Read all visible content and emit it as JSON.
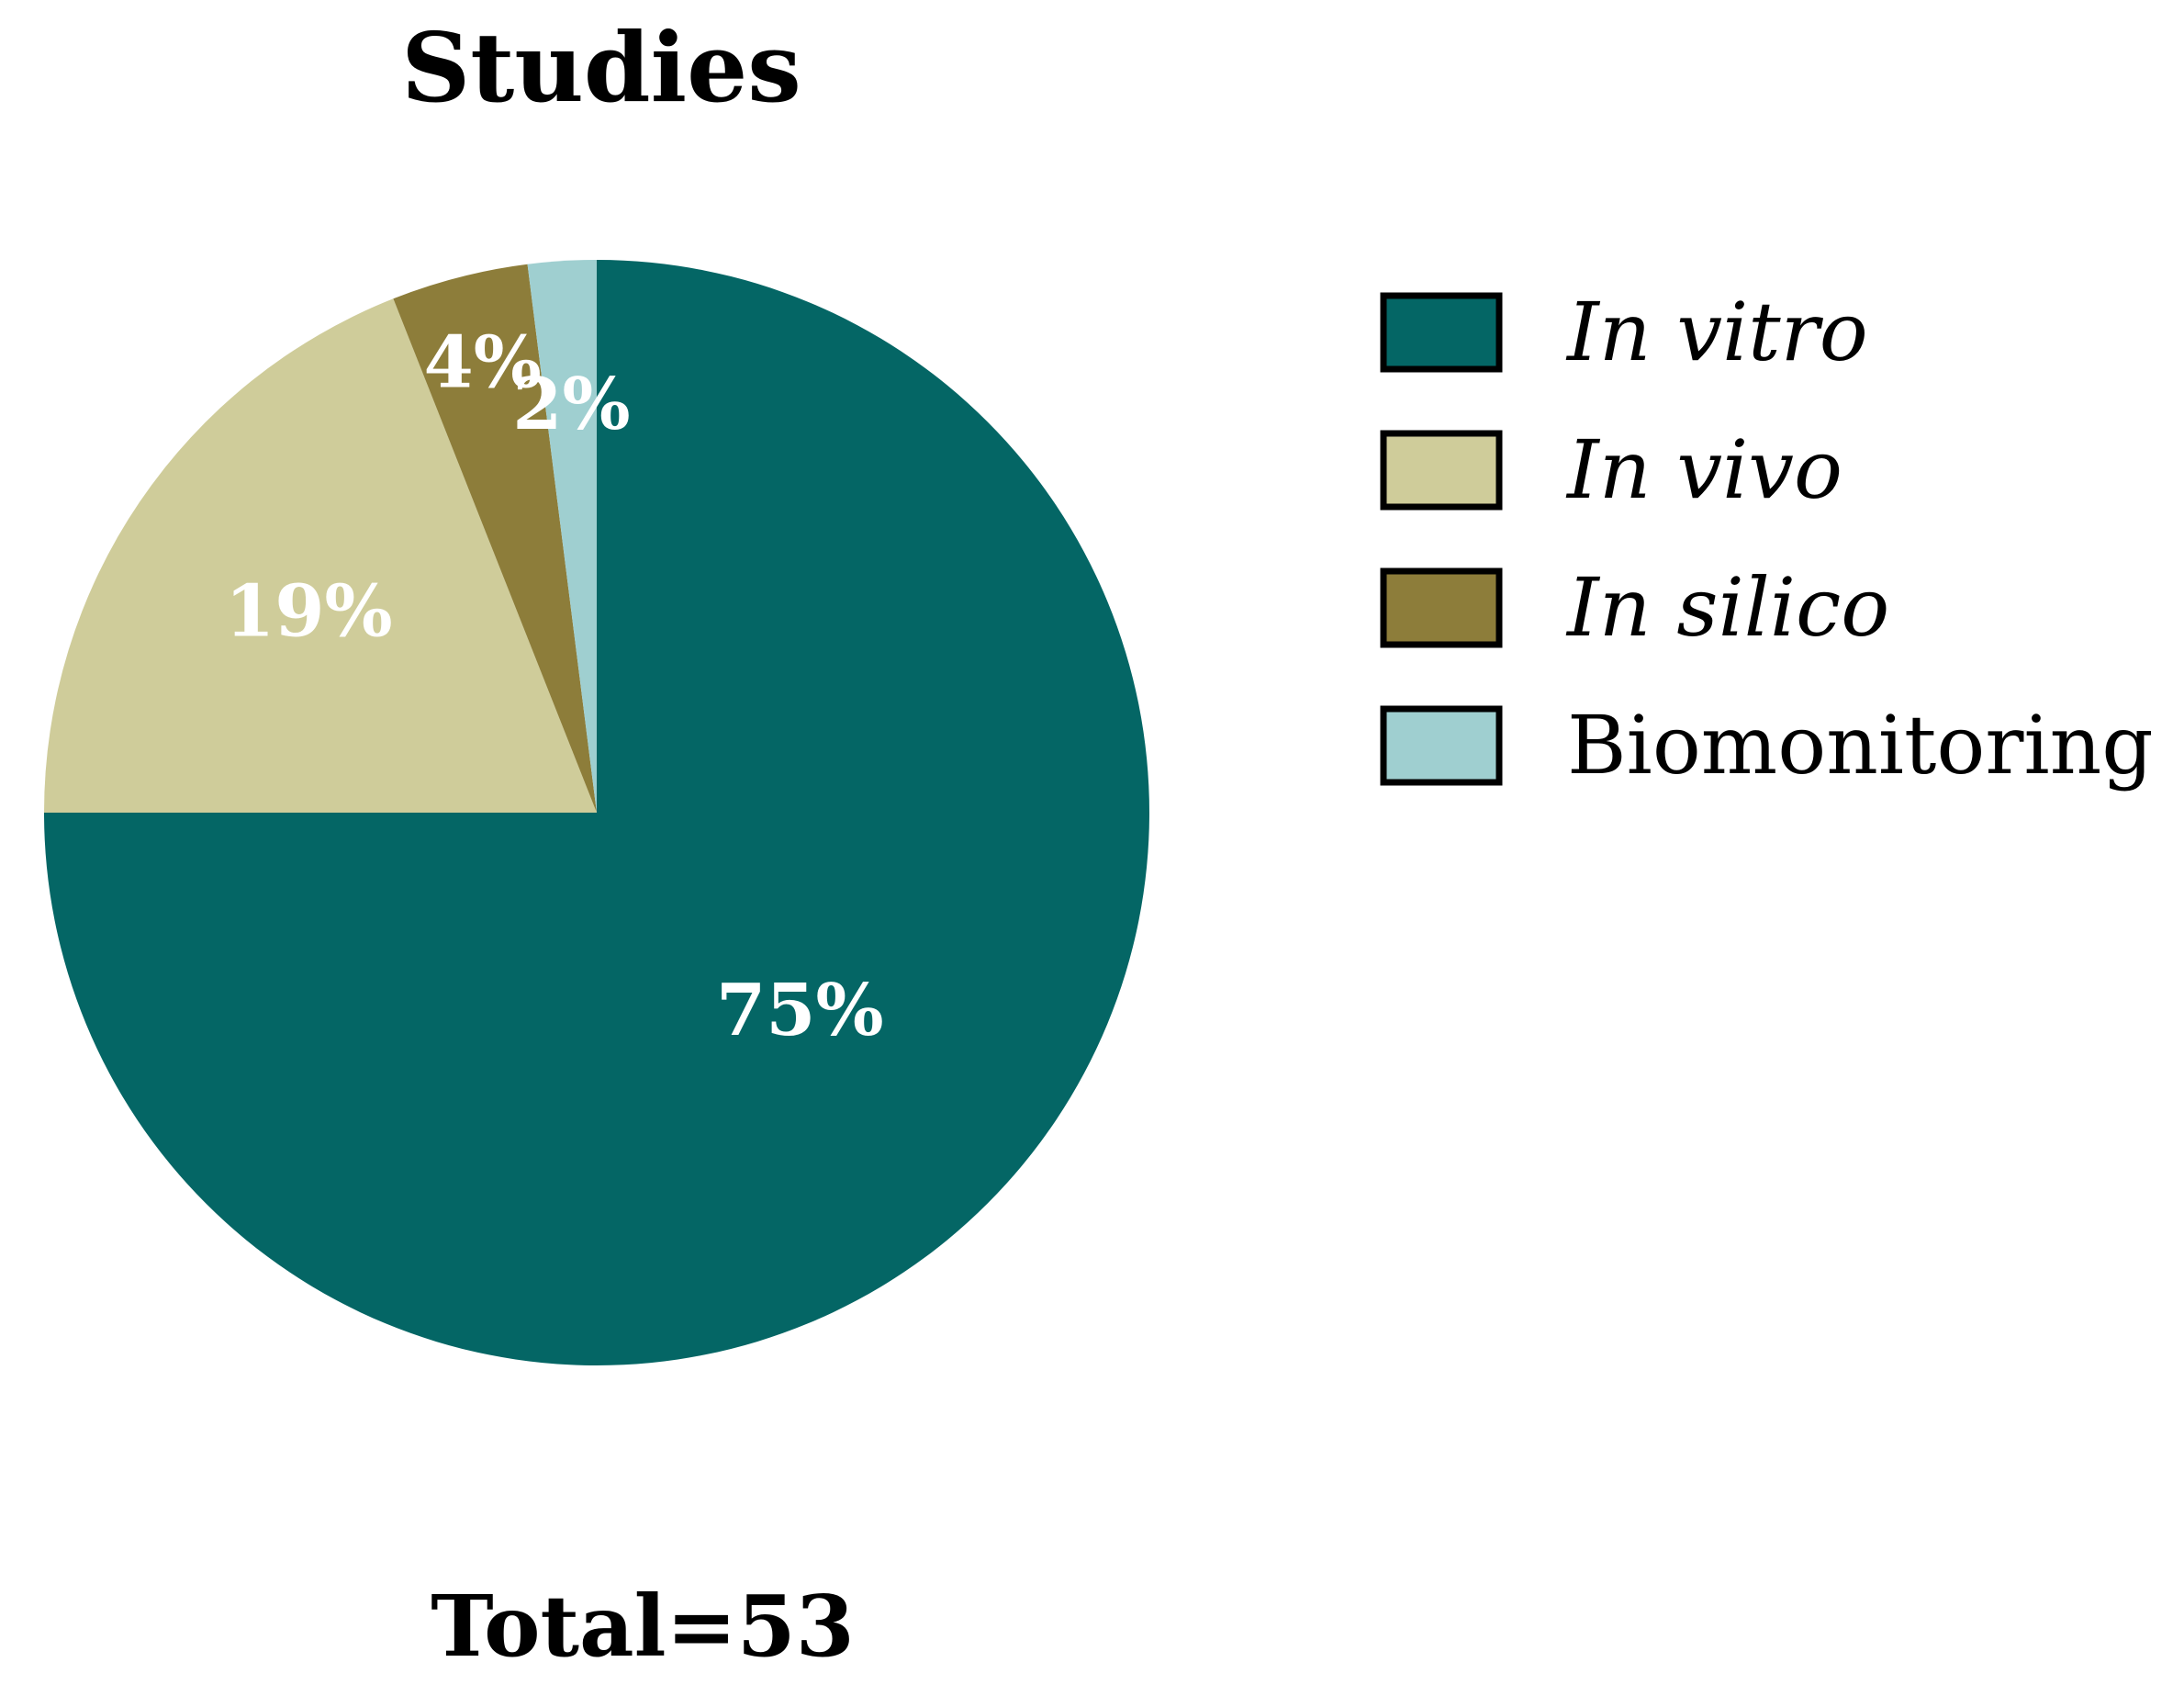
{
  "chart_data": {
    "type": "pie",
    "title": "Studies",
    "footer": "Total=53",
    "legend_position": "right",
    "slices": [
      {
        "name": "In vitro",
        "value": 75,
        "label": "75%",
        "color": "#046665",
        "italic": true
      },
      {
        "name": "In vivo",
        "value": 19,
        "label": "19%",
        "color": "#cfcc9a",
        "italic": true
      },
      {
        "name": "In silico",
        "value": 4,
        "label": "4%",
        "color": "#8d7d3a",
        "italic": true
      },
      {
        "name": "Biomonitoring",
        "value": 2,
        "label": "2%",
        "color": "#9fcfd0",
        "italic": false
      }
    ]
  }
}
